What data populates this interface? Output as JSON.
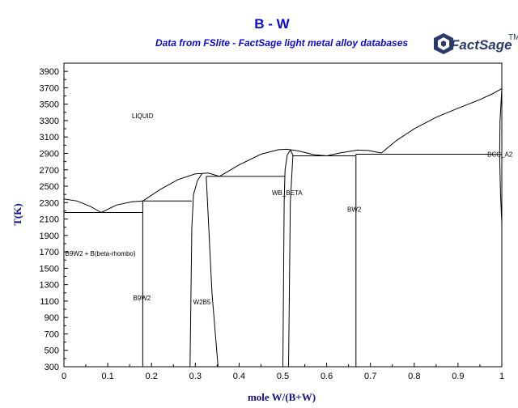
{
  "header": {
    "title": "B - W",
    "subtitle": "Data from FSlite - FactSage light metal alloy databases"
  },
  "logo": {
    "text": "FactSage",
    "mark": "TM"
  },
  "chart_data": {
    "type": "line",
    "title": "B - W",
    "subtitle": "Data from FSlite - FactSage light metal alloy databases",
    "xlabel": "mole W/(B+W)",
    "ylabel": "T(K)",
    "xlim": [
      0,
      1
    ],
    "ylim": [
      300,
      4000
    ],
    "xticks": [
      0,
      0.1,
      0.2,
      0.3,
      0.4,
      0.5,
      0.6,
      0.7,
      0.8,
      0.9,
      1
    ],
    "xtick_labels": [
      "0",
      "0.1",
      "0.2",
      "0.3",
      "0.4",
      "0.5",
      "0.6",
      "0.7",
      "0.8",
      "0.9",
      "1"
    ],
    "yticks": [
      300,
      500,
      700,
      900,
      1100,
      1300,
      1500,
      1700,
      1900,
      2100,
      2300,
      2500,
      2700,
      2900,
      3100,
      3300,
      3500,
      3700,
      3900
    ],
    "ytick_labels": [
      "300",
      "500",
      "700",
      "900",
      "1100",
      "1300",
      "1500",
      "1700",
      "1900",
      "2100",
      "2300",
      "2500",
      "2700",
      "2900",
      "3100",
      "3300",
      "3500",
      "3700",
      "3900"
    ],
    "grid": false,
    "region_labels": [
      {
        "text": "LIQUID",
        "x": 0.155,
        "y": 3330
      },
      {
        "text": "B9W2 + B(beta-rhombo)",
        "x": 0.003,
        "y": 1650
      },
      {
        "text": "B9W2",
        "x": 0.158,
        "y": 1110
      },
      {
        "text": "W2B5",
        "x": 0.295,
        "y": 1060
      },
      {
        "text": "WB_BETA",
        "x": 0.475,
        "y": 2390
      },
      {
        "text": "BW2",
        "x": 0.647,
        "y": 2190
      },
      {
        "text": "BCC_A2",
        "x": 0.967,
        "y": 2860
      }
    ],
    "series": [
      {
        "id": "liquidus-b-side",
        "points": [
          [
            0,
            2345
          ],
          [
            0.03,
            2320
          ],
          [
            0.06,
            2255
          ],
          [
            0.085,
            2180
          ]
        ]
      },
      {
        "id": "liquidus-b9w2",
        "points": [
          [
            0.085,
            2180
          ],
          [
            0.12,
            2270
          ],
          [
            0.155,
            2310
          ],
          [
            0.18,
            2320
          ]
        ]
      },
      {
        "id": "liquidus-w2b5",
        "points": [
          [
            0.18,
            2320
          ],
          [
            0.22,
            2460
          ],
          [
            0.26,
            2580
          ],
          [
            0.3,
            2650
          ],
          [
            0.33,
            2660
          ],
          [
            0.355,
            2620
          ]
        ]
      },
      {
        "id": "liquidus-wb",
        "points": [
          [
            0.355,
            2620
          ],
          [
            0.4,
            2760
          ],
          [
            0.45,
            2890
          ],
          [
            0.49,
            2945
          ],
          [
            0.51,
            2950
          ],
          [
            0.535,
            2930
          ],
          [
            0.57,
            2885
          ],
          [
            0.6,
            2870
          ]
        ]
      },
      {
        "id": "liquidus-bw2",
        "points": [
          [
            0.6,
            2870
          ],
          [
            0.63,
            2905
          ],
          [
            0.67,
            2940
          ],
          [
            0.695,
            2935
          ],
          [
            0.725,
            2905
          ]
        ]
      },
      {
        "id": "liquidus-w-side",
        "points": [
          [
            0.725,
            2905
          ],
          [
            0.76,
            3060
          ],
          [
            0.8,
            3200
          ],
          [
            0.85,
            3340
          ],
          [
            0.9,
            3450
          ],
          [
            0.95,
            3555
          ],
          [
            0.98,
            3630
          ],
          [
            1,
            3690
          ]
        ]
      },
      {
        "id": "eutectic-b-b9w2",
        "points": [
          [
            0,
            2180
          ],
          [
            0.18,
            2180
          ]
        ]
      },
      {
        "id": "peritectic-b9w2",
        "points": [
          [
            0.18,
            2320
          ],
          [
            0.292,
            2320
          ]
        ]
      },
      {
        "id": "eutectic-w2b5-wb",
        "points": [
          [
            0.325,
            2620
          ],
          [
            0.505,
            2620
          ]
        ]
      },
      {
        "id": "eutectic-wb-bw2",
        "points": [
          [
            0.522,
            2870
          ],
          [
            0.667,
            2870
          ]
        ]
      },
      {
        "id": "eutectic-bw2-bcc",
        "points": [
          [
            0.667,
            2890
          ],
          [
            1,
            2890
          ]
        ]
      },
      {
        "id": "b9w2-line",
        "points": [
          [
            0.18,
            300
          ],
          [
            0.18,
            2320
          ]
        ]
      },
      {
        "id": "w2b5-left",
        "points": [
          [
            0.288,
            300
          ],
          [
            0.292,
            2000
          ],
          [
            0.296,
            2400
          ],
          [
            0.305,
            2570
          ],
          [
            0.315,
            2650
          ]
        ]
      },
      {
        "id": "w2b5-right",
        "points": [
          [
            0.352,
            300
          ],
          [
            0.338,
            1200
          ],
          [
            0.328,
            2300
          ],
          [
            0.325,
            2620
          ]
        ]
      },
      {
        "id": "wb-left",
        "points": [
          [
            0.5,
            300
          ],
          [
            0.503,
            2300
          ],
          [
            0.505,
            2700
          ],
          [
            0.51,
            2880
          ],
          [
            0.517,
            2940
          ]
        ]
      },
      {
        "id": "wb-right",
        "points": [
          [
            0.517,
            2940
          ],
          [
            0.523,
            2880
          ],
          [
            0.521,
            2700
          ],
          [
            0.517,
            2300
          ],
          [
            0.513,
            300
          ]
        ]
      },
      {
        "id": "bw2-line",
        "points": [
          [
            0.667,
            300
          ],
          [
            0.667,
            2890
          ]
        ]
      },
      {
        "id": "bcc-solvus",
        "points": [
          [
            1,
            2050
          ],
          [
            0.997,
            2400
          ],
          [
            0.995,
            2890
          ],
          [
            0.996,
            3300
          ],
          [
            1,
            3690
          ]
        ]
      }
    ]
  }
}
